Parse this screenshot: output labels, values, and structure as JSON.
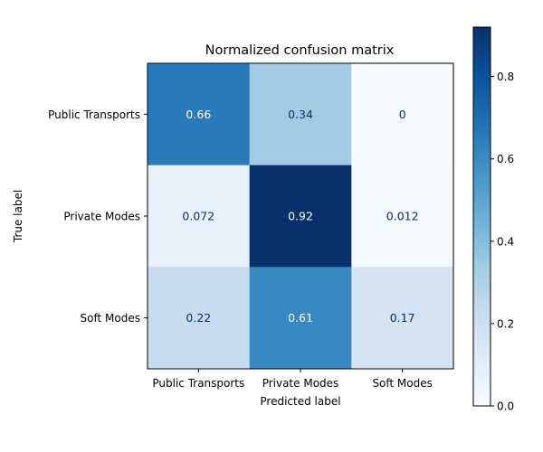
{
  "chart_data": {
    "type": "heatmap",
    "title": "Normalized confusion matrix",
    "xlabel": "Predicted label",
    "ylabel": "True label",
    "x_categories": [
      "Public Transports",
      "Private Modes",
      "Soft Modes"
    ],
    "y_categories": [
      "Public Transports",
      "Private Modes",
      "Soft Modes"
    ],
    "values": [
      [
        0.66,
        0.34,
        0
      ],
      [
        0.072,
        0.92,
        0.012
      ],
      [
        0.22,
        0.61,
        0.17
      ]
    ],
    "value_labels": [
      [
        "0.66",
        "0.34",
        "0"
      ],
      [
        "0.072",
        "0.92",
        "0.012"
      ],
      [
        "0.22",
        "0.61",
        "0.17"
      ]
    ],
    "colormap": "Blues",
    "colorbar": {
      "range": [
        0,
        0.92
      ],
      "ticks": [
        0.0,
        0.2,
        0.4,
        0.6,
        0.8
      ],
      "tick_labels": [
        "0.0",
        "0.2",
        "0.4",
        "0.6",
        "0.8"
      ]
    },
    "grid": false,
    "legend": "colorbar-right"
  }
}
